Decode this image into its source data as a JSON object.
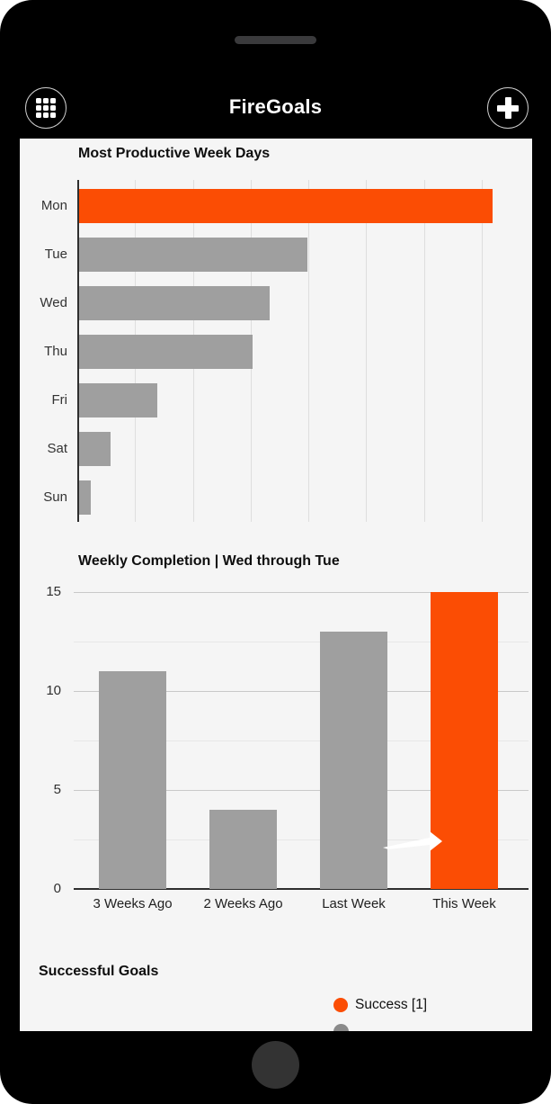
{
  "header": {
    "title": "FireGoals",
    "menu_button_icon": "grid-menu-icon",
    "add_button_icon": "plus-icon"
  },
  "device": {
    "type": "phone-mockup",
    "speaker_slot": true,
    "home_button": true
  },
  "sections": {
    "successful_goals_heading": "Successful Goals"
  },
  "legend": {
    "items": [
      {
        "label": "Success [1]",
        "color": "#FB4D04"
      }
    ],
    "partial_next_item_color": "#8A8A8A"
  },
  "annotations": {
    "white_arrow": "white arrow artifact pointing right at the This Week bar"
  },
  "colors": {
    "accent_orange": "#FB4D04",
    "bar_gray": "#9F9F9F",
    "screen_bg": "#F5F5F5",
    "phone_black": "#000000"
  },
  "chart_data": [
    {
      "type": "bar",
      "orientation": "horizontal",
      "title": "Most Productive Week Days",
      "categories": [
        "Mon",
        "Tue",
        "Wed",
        "Thu",
        "Fri",
        "Sat",
        "Sun"
      ],
      "values": [
        7.15,
        3.95,
        3.3,
        3.0,
        1.35,
        0.55,
        0.2
      ],
      "value_axis": {
        "labels_visible": false,
        "gridline_interval": 1,
        "max": 7.85
      },
      "highlight_index": 0,
      "bar_color": "#9F9F9F",
      "highlight_color": "#FB4D04",
      "grid": true,
      "legend_position": "none"
    },
    {
      "type": "bar",
      "orientation": "vertical",
      "title": "Weekly Completion | Wed through Tue",
      "categories": [
        "3 Weeks Ago",
        "2 Weeks Ago",
        "Last Week",
        "This Week"
      ],
      "values": [
        11,
        4,
        13,
        15
      ],
      "ylim": [
        0,
        15
      ],
      "yticks": [
        0,
        5,
        10,
        15
      ],
      "minor_gridlines": [
        2.5,
        7.5,
        12.5
      ],
      "highlight_index": 3,
      "bar_color": "#9F9F9F",
      "highlight_color": "#FB4D04",
      "grid": true,
      "legend_position": "none"
    }
  ]
}
